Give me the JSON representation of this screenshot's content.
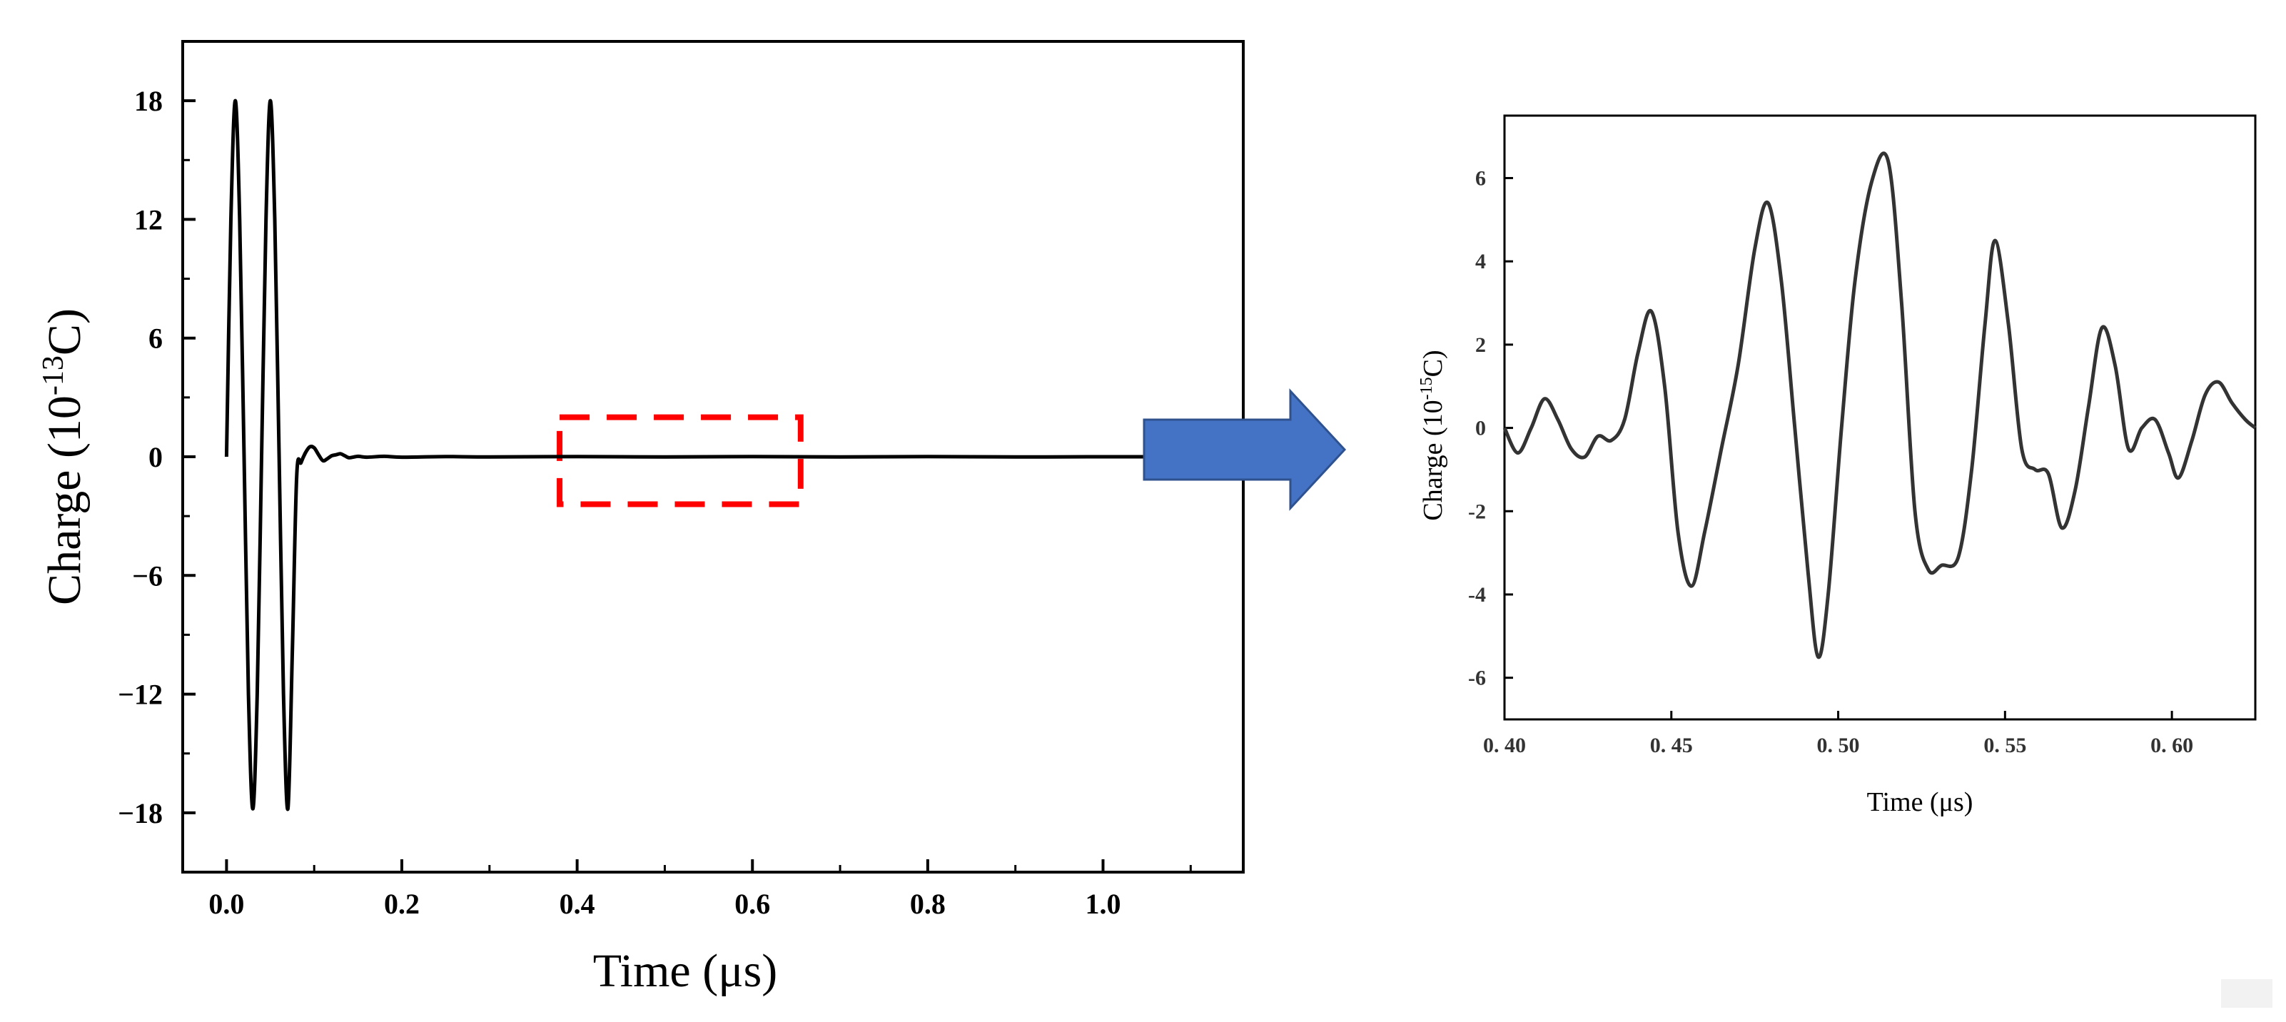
{
  "chart_data": [
    {
      "type": "line",
      "xlabel": "Time (μs)",
      "ylabel": {
        "prefix": "Charge (10",
        "exponent": "-13",
        "suffix": "C)"
      },
      "xlim": [
        -0.05,
        1.16
      ],
      "ylim": [
        -21,
        21
      ],
      "x_ticks": [
        0.0,
        0.2,
        0.4,
        0.6,
        0.8,
        1.0
      ],
      "x_tick_labels": [
        "0.0",
        "0.2",
        "0.4",
        "0.6",
        "0.8",
        "1.0"
      ],
      "y_ticks": [
        18,
        12,
        6,
        0,
        -6,
        -12,
        -18
      ],
      "y_tick_labels": [
        "18",
        "12",
        "6",
        "0",
        "−6",
        "−12",
        "−18"
      ],
      "series": [
        {
          "x": [
            0.0,
            0.005,
            0.01,
            0.015,
            0.02,
            0.025,
            0.03,
            0.035,
            0.04,
            0.045,
            0.05,
            0.055,
            0.06,
            0.065,
            0.07,
            0.075,
            0.08,
            0.085,
            0.09,
            0.095,
            0.1,
            0.105,
            0.11,
            0.115,
            0.12,
            0.125,
            0.13,
            0.135,
            0.14,
            0.15,
            0.16,
            0.18,
            0.2,
            0.25,
            0.3,
            0.4,
            0.5,
            0.6,
            0.7,
            0.8,
            0.9,
            1.0,
            1.05
          ],
          "y": [
            0,
            12,
            18,
            12,
            0,
            -12,
            -17.8,
            -12,
            0,
            12,
            18,
            12,
            0,
            -12,
            -17.8,
            -10,
            -1,
            -0.3,
            0.2,
            0.5,
            0.45,
            0.1,
            -0.2,
            -0.1,
            0.05,
            0.1,
            0.15,
            0.05,
            -0.05,
            0.02,
            -0.02,
            0.02,
            -0.02,
            0.01,
            -0.01,
            0.01,
            -0.01,
            0.01,
            -0.01,
            0.01,
            -0.01,
            0.0,
            0.0
          ]
        }
      ],
      "highlight_box": {
        "x": [
          0.38,
          0.655
        ],
        "y": [
          -2.4,
          2.0
        ],
        "color": "#ff0000"
      }
    },
    {
      "type": "line",
      "xlabel": "Time (μs)",
      "ylabel": {
        "prefix": "Charge (10",
        "exponent": "-15",
        "suffix": "C)"
      },
      "xlim": [
        0.4,
        0.625
      ],
      "ylim": [
        -7,
        7.5
      ],
      "x_ticks": [
        0.4,
        0.45,
        0.5,
        0.55,
        0.6
      ],
      "x_tick_labels": [
        "0. 40",
        "0. 45",
        "0. 50",
        "0. 55",
        "0. 60"
      ],
      "y_ticks": [
        6,
        4,
        2,
        0,
        -2,
        -4,
        -6
      ],
      "y_tick_labels": [
        "6",
        "4",
        "2",
        "0",
        "-2",
        "-4",
        "-6"
      ],
      "series": [
        {
          "x": [
            0.4,
            0.404,
            0.408,
            0.412,
            0.416,
            0.42,
            0.424,
            0.428,
            0.432,
            0.436,
            0.44,
            0.444,
            0.448,
            0.452,
            0.456,
            0.46,
            0.465,
            0.47,
            0.475,
            0.479,
            0.483,
            0.487,
            0.491,
            0.494,
            0.497,
            0.501,
            0.505,
            0.51,
            0.515,
            0.519,
            0.523,
            0.527,
            0.531,
            0.536,
            0.54,
            0.544,
            0.547,
            0.551,
            0.555,
            0.559,
            0.563,
            0.567,
            0.571,
            0.575,
            0.579,
            0.583,
            0.587,
            0.591,
            0.595,
            0.599,
            0.602,
            0.606,
            0.61,
            0.614,
            0.618,
            0.622,
            0.625
          ],
          "y": [
            0.0,
            -0.6,
            0.0,
            0.7,
            0.2,
            -0.5,
            -0.7,
            -0.2,
            -0.3,
            0.2,
            1.8,
            2.8,
            1.0,
            -2.5,
            -3.8,
            -2.5,
            -0.5,
            1.5,
            4.3,
            5.4,
            3.5,
            0.0,
            -3.5,
            -5.5,
            -4.0,
            0.0,
            3.5,
            5.9,
            6.4,
            3.0,
            -2.0,
            -3.4,
            -3.3,
            -3.1,
            -1.0,
            2.5,
            4.5,
            2.5,
            -0.5,
            -1.0,
            -1.1,
            -2.4,
            -1.5,
            0.5,
            2.4,
            1.5,
            -0.5,
            0.0,
            0.2,
            -0.6,
            -1.2,
            -0.3,
            0.8,
            1.1,
            0.6,
            0.2,
            0.0
          ]
        }
      ]
    }
  ],
  "arrow": {
    "color": "#4472c4",
    "border": "#2f528f"
  }
}
